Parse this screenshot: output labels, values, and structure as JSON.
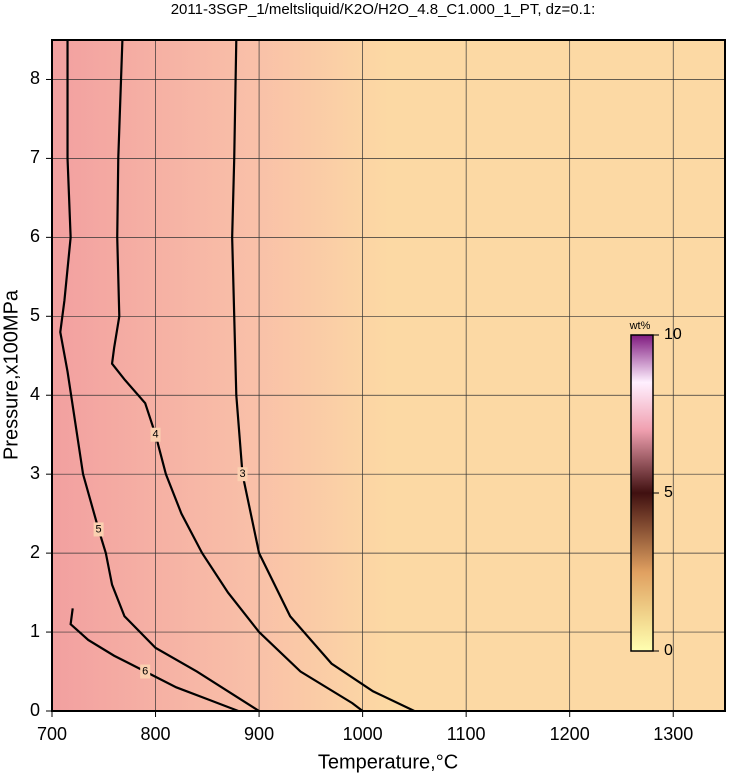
{
  "chart_data": {
    "type": "contour",
    "title": "2011-3SGP_1/meltsliquid/K2O/H2O_4.8_C1.000_1_PT, dz=0.1:",
    "x_label": "Temperature,°C",
    "y_label": "Pressure,x100MPa",
    "xlim": [
      700,
      1350
    ],
    "xticks": [
      700,
      800,
      900,
      1000,
      1100,
      1200,
      1300
    ],
    "ylim": [
      0,
      8.5
    ],
    "yticks": [
      0,
      1,
      2,
      3,
      4,
      5,
      6,
      7,
      8
    ],
    "grid": true,
    "contours": [
      {
        "level": 3,
        "x": [
          878,
          876,
          874,
          876,
          878,
          884,
          900,
          930,
          970,
          1010,
          1050
        ],
        "y": [
          8.5,
          7,
          6,
          5,
          4,
          3,
          2,
          1.2,
          0.6,
          0.25,
          0
        ]
      },
      {
        "level": 4,
        "x": [
          768,
          764,
          763,
          765,
          760,
          758,
          770,
          790,
          800,
          810,
          825,
          845,
          870,
          900,
          940,
          990,
          1000
        ],
        "y": [
          8.5,
          7,
          6,
          5,
          4.6,
          4.4,
          4.2,
          3.9,
          3.5,
          3,
          2.5,
          2,
          1.5,
          1,
          0.5,
          0.1,
          0
        ]
      },
      {
        "level": 5,
        "x": [
          715,
          715,
          718,
          712,
          708,
          715,
          730,
          745,
          752,
          758,
          770,
          800,
          840,
          870,
          900
        ],
        "y": [
          8.5,
          7,
          6,
          5.2,
          4.8,
          4.3,
          3,
          2.3,
          2,
          1.6,
          1.2,
          0.8,
          0.5,
          0.25,
          0
        ]
      },
      {
        "level": 6,
        "x": [
          720,
          718,
          735,
          760,
          790,
          820,
          850,
          880
        ],
        "y": [
          1.3,
          1.1,
          0.9,
          0.7,
          0.5,
          0.3,
          0.15,
          0
        ]
      }
    ],
    "colorbar": {
      "label": "wt%",
      "lim": [
        0,
        10
      ],
      "ticks": [
        0,
        5,
        10
      ]
    }
  }
}
